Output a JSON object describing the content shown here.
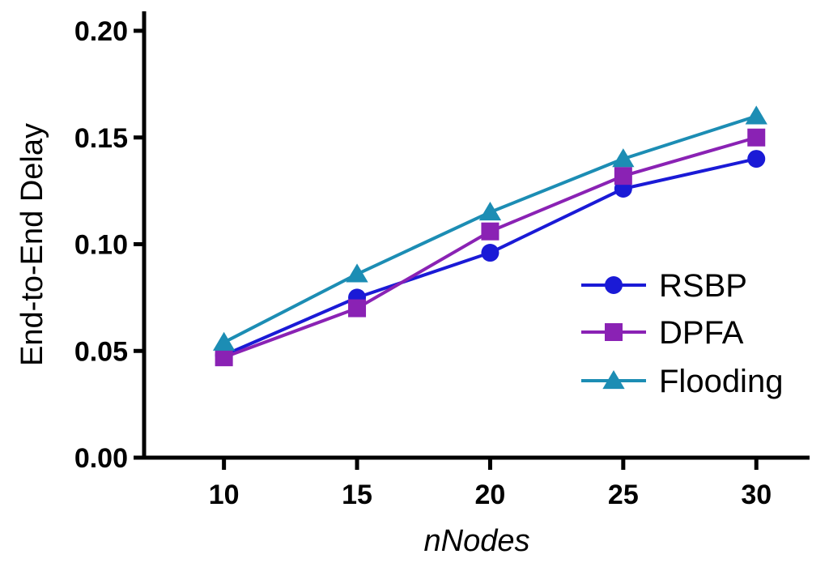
{
  "chart_data": {
    "type": "line",
    "title": "",
    "xlabel": "nNodes",
    "ylabel": "End-to-End Delay",
    "x": [
      10,
      15,
      20,
      25,
      30
    ],
    "x_tick_labels": [
      "10",
      "15",
      "20",
      "25",
      "30"
    ],
    "xlim": [
      7,
      32
    ],
    "ylim": [
      0,
      0.2
    ],
    "y_tick_values": [
      0,
      0.05,
      0.1,
      0.15,
      0.2
    ],
    "y_tick_labels": [
      "0.00",
      "0.05",
      "0.10",
      "0.15",
      "0.20"
    ],
    "grid": false,
    "legend_position": "center-right",
    "series": [
      {
        "name": "RSBP",
        "marker": "circle",
        "color": "#1a1ad6",
        "values": [
          0.048,
          0.075,
          0.096,
          0.126,
          0.14
        ]
      },
      {
        "name": "DPFA",
        "marker": "square",
        "color": "#8a22b4",
        "values": [
          0.047,
          0.07,
          0.106,
          0.132,
          0.15
        ]
      },
      {
        "name": "Flooding",
        "marker": "triangle",
        "color": "#1c8db4",
        "values": [
          0.054,
          0.086,
          0.115,
          0.14,
          0.16
        ]
      }
    ]
  }
}
